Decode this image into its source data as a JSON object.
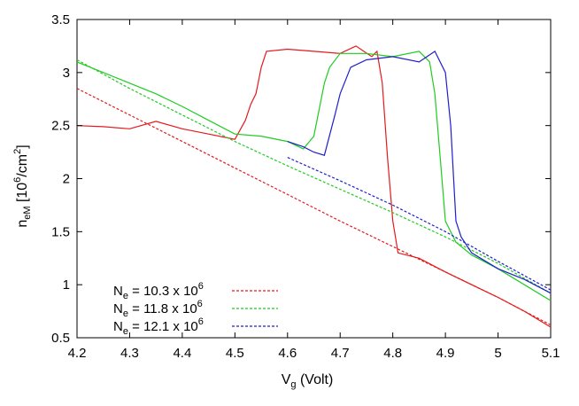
{
  "chart_data": {
    "type": "line",
    "xlabel_main": "V",
    "xlabel_sub": "g",
    "xlabel_rest": " (Volt)",
    "ylabel_main": "n",
    "ylabel_sub": "eM",
    "ylabel_rest_a": " [10",
    "ylabel_sup1": "6",
    "ylabel_rest_b": "/cm",
    "ylabel_sup2": "2",
    "ylabel_rest_c": "]",
    "xlim": [
      4.2,
      5.1
    ],
    "ylim": [
      0.5,
      3.5
    ],
    "xticks": [
      "4.2",
      "4.3",
      "4.4",
      "4.5",
      "4.6",
      "4.7",
      "4.8",
      "4.9",
      "5",
      "5.1"
    ],
    "yticks": [
      "0.5",
      "1",
      "1.5",
      "2",
      "2.5",
      "3",
      "3.5"
    ],
    "grid": false,
    "legend_position": "bottom-left",
    "legend": [
      {
        "prefix": "N",
        "sub": "e",
        "mid": " = 10.3 x 10",
        "sup": "6",
        "color": "#e41a1c"
      },
      {
        "prefix": "N",
        "sub": "e",
        "mid": " = 11.8 x 10",
        "sup": "6",
        "color": "#1fcc1f"
      },
      {
        "prefix": "N",
        "sub": "e",
        "mid": " = 12.1 x 10",
        "sup": "6",
        "color": "#1f1fcc"
      }
    ],
    "series": [
      {
        "legend_index": 0,
        "style": "solid",
        "color": "#e41a1c",
        "x": [
          4.2,
          4.25,
          4.3,
          4.35,
          4.4,
          4.45,
          4.5,
          4.52,
          4.53,
          4.54,
          4.55,
          4.56,
          4.6,
          4.65,
          4.7,
          4.73,
          4.76,
          4.77,
          4.78,
          4.79,
          4.8,
          4.81,
          4.85,
          4.9,
          4.95,
          5.0,
          5.05,
          5.1
        ],
        "y": [
          2.5,
          2.49,
          2.47,
          2.54,
          2.47,
          2.42,
          2.37,
          2.55,
          2.7,
          2.8,
          3.05,
          3.2,
          3.22,
          3.2,
          3.18,
          3.25,
          3.15,
          3.2,
          2.9,
          2.2,
          1.6,
          1.3,
          1.25,
          1.12,
          1.0,
          0.88,
          0.75,
          0.6
        ]
      },
      {
        "legend_index": 0,
        "style": "dashed",
        "color": "#e41a1c",
        "x": [
          4.2,
          4.3,
          4.4,
          4.5,
          4.6,
          4.7,
          4.8,
          4.9,
          5.0,
          5.1
        ],
        "y": [
          2.85,
          2.6,
          2.35,
          2.1,
          1.85,
          1.6,
          1.36,
          1.12,
          0.88,
          0.62
        ]
      },
      {
        "legend_index": 1,
        "style": "solid",
        "color": "#1fcc1f",
        "x": [
          4.2,
          4.25,
          4.3,
          4.35,
          4.4,
          4.45,
          4.5,
          4.55,
          4.6,
          4.63,
          4.65,
          4.67,
          4.68,
          4.7,
          4.75,
          4.8,
          4.85,
          4.87,
          4.88,
          4.89,
          4.9,
          4.92,
          4.95,
          5.0,
          5.05,
          5.1
        ],
        "y": [
          3.1,
          3.0,
          2.9,
          2.8,
          2.68,
          2.55,
          2.42,
          2.4,
          2.35,
          2.28,
          2.4,
          2.9,
          3.05,
          3.18,
          3.18,
          3.15,
          3.2,
          3.1,
          2.8,
          2.2,
          1.6,
          1.4,
          1.28,
          1.15,
          1.0,
          0.85
        ]
      },
      {
        "legend_index": 1,
        "style": "dashed",
        "color": "#1fcc1f",
        "x": [
          4.2,
          4.3,
          4.4,
          4.5,
          4.6,
          4.7,
          4.8,
          4.9,
          5.0,
          5.1
        ],
        "y": [
          3.12,
          2.85,
          2.6,
          2.35,
          2.12,
          1.9,
          1.68,
          1.45,
          1.2,
          0.92
        ]
      },
      {
        "legend_index": 2,
        "style": "solid",
        "color": "#1f1fcc",
        "x": [
          4.6,
          4.63,
          4.65,
          4.67,
          4.69,
          4.7,
          4.72,
          4.75,
          4.8,
          4.85,
          4.88,
          4.9,
          4.91,
          4.92,
          4.93,
          4.95,
          5.0,
          5.05,
          5.1
        ],
        "y": [
          2.35,
          2.3,
          2.25,
          2.22,
          2.6,
          2.8,
          3.05,
          3.12,
          3.15,
          3.1,
          3.2,
          3.0,
          2.5,
          1.6,
          1.45,
          1.3,
          1.15,
          1.05,
          0.92
        ]
      },
      {
        "legend_index": 2,
        "style": "dashed",
        "color": "#1f1fcc",
        "x": [
          4.6,
          4.7,
          4.8,
          4.9,
          5.0,
          5.1
        ],
        "y": [
          2.2,
          1.98,
          1.75,
          1.5,
          1.22,
          0.95
        ]
      }
    ]
  }
}
